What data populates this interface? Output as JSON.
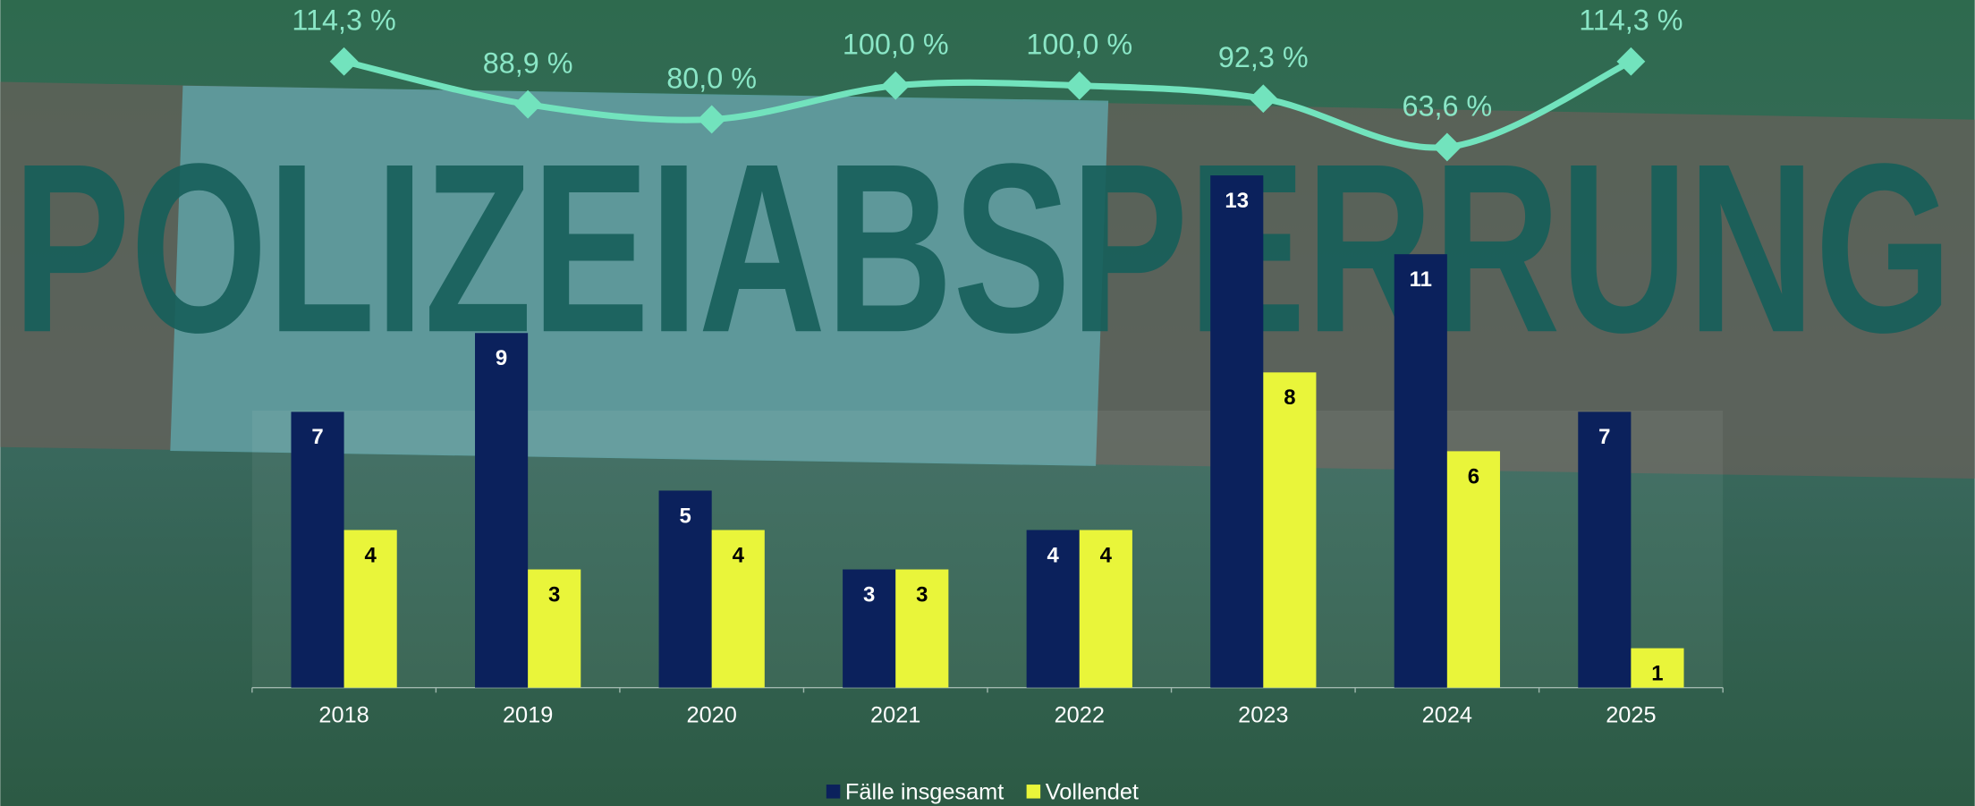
{
  "background": {
    "text": "POLIZEIABSPERRUNG"
  },
  "chart_data": {
    "type": "bar",
    "categories": [
      "2018",
      "2019",
      "2020",
      "2021",
      "2022",
      "2023",
      "2024",
      "2025"
    ],
    "series": [
      {
        "name": "Fälle insgesamt",
        "color": "#0b215c",
        "values": [
          7,
          9,
          5,
          3,
          4,
          13,
          11,
          7
        ]
      },
      {
        "name": "Vollendet",
        "color": "#e9f53a",
        "values": [
          4,
          3,
          4,
          3,
          4,
          8,
          6,
          1
        ]
      },
      {
        "type": "line",
        "axis": "y2",
        "color": "#72e3bd",
        "values": [
          114.3,
          88.9,
          80.0,
          100.0,
          100.0,
          92.3,
          63.6,
          114.3
        ],
        "value_labels": [
          "114,3 %",
          "88,9 %",
          "80,0 %",
          "100,0 %",
          "100,0 %",
          "92,3 %",
          "63,6 %",
          "114,3 %"
        ]
      }
    ],
    "ylim": [
      0,
      14
    ],
    "y2lim": [
      0,
      150
    ],
    "legend": "bottom"
  }
}
